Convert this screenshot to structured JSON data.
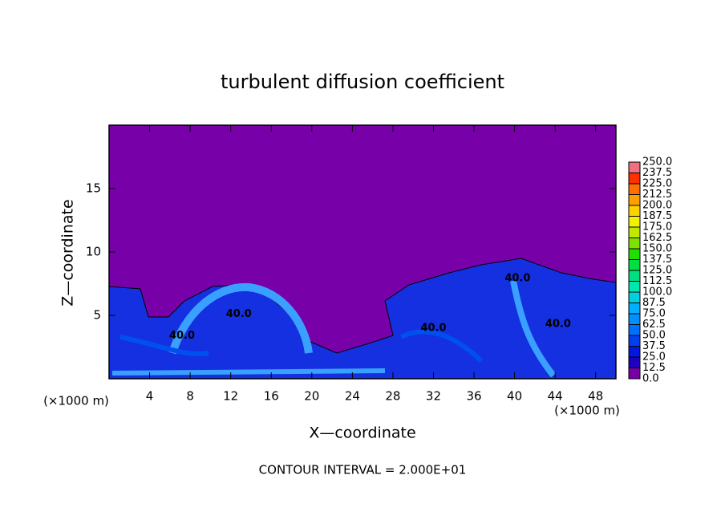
{
  "chart_data": {
    "type": "contour",
    "title": "turbulent diffusion coefficient",
    "x_label": "X—coordinate",
    "y_label": "Z—coordinate",
    "x_unit": "(×1000 m)",
    "x_unit_right": "(×1000 m)",
    "note": "CONTOUR INTERVAL = 2.000E+01",
    "xlim": [
      0,
      50
    ],
    "ylim": [
      0,
      20
    ],
    "xticks": [
      4,
      8,
      12,
      16,
      20,
      24,
      28,
      32,
      36,
      40,
      44,
      48
    ],
    "yticks": [
      5,
      10,
      15
    ],
    "colorbar": {
      "levels": [
        {
          "value": 0,
          "label": "0.0"
        },
        {
          "value": 12.5,
          "label": "12.5"
        },
        {
          "value": 25,
          "label": "25.0"
        },
        {
          "value": 37.5,
          "label": "37.5"
        },
        {
          "value": 50,
          "label": "50.0"
        },
        {
          "value": 62.5,
          "label": "62.5"
        },
        {
          "value": 75,
          "label": "75.0"
        },
        {
          "value": 87.5,
          "label": "87.5"
        },
        {
          "value": 100,
          "label": "100.0"
        },
        {
          "value": 112.5,
          "label": "112.5"
        },
        {
          "value": 125,
          "label": "125.0"
        },
        {
          "value": 137.5,
          "label": "137.5"
        },
        {
          "value": 150,
          "label": "150.0"
        },
        {
          "value": 162.5,
          "label": "162.5"
        },
        {
          "value": 175,
          "label": "175.0"
        },
        {
          "value": 187.5,
          "label": "187.5"
        },
        {
          "value": 200,
          "label": "200.0"
        },
        {
          "value": 212.5,
          "label": "212.5"
        },
        {
          "value": 225,
          "label": "225.0"
        },
        {
          "value": 237.5,
          "label": "237.5"
        },
        {
          "value": 250,
          "label": "250.0"
        }
      ],
      "colors": [
        "#7800a8",
        "#2000c0",
        "#0018e0",
        "#0040f0",
        "#0070ff",
        "#0090ff",
        "#00b0ff",
        "#00d0e0",
        "#00e8b0",
        "#00e080",
        "#00e040",
        "#20e000",
        "#80e000",
        "#c0e800",
        "#f0f000",
        "#ffd000",
        "#ffa000",
        "#ff7000",
        "#ff3000",
        "#f07080"
      ]
    },
    "contour_labels": [
      {
        "x": 12.8,
        "y": 5.1,
        "value": 40,
        "label": "40.0"
      },
      {
        "x": 7.2,
        "y": 3.4,
        "value": 40,
        "label": "40.0"
      },
      {
        "x": 40.3,
        "y": 7.9,
        "value": 40,
        "label": "40.0"
      },
      {
        "x": 32,
        "y": 4,
        "value": 40,
        "label": "40.0"
      },
      {
        "x": 44.3,
        "y": 4.3,
        "value": 40,
        "label": "40.0"
      }
    ]
  }
}
